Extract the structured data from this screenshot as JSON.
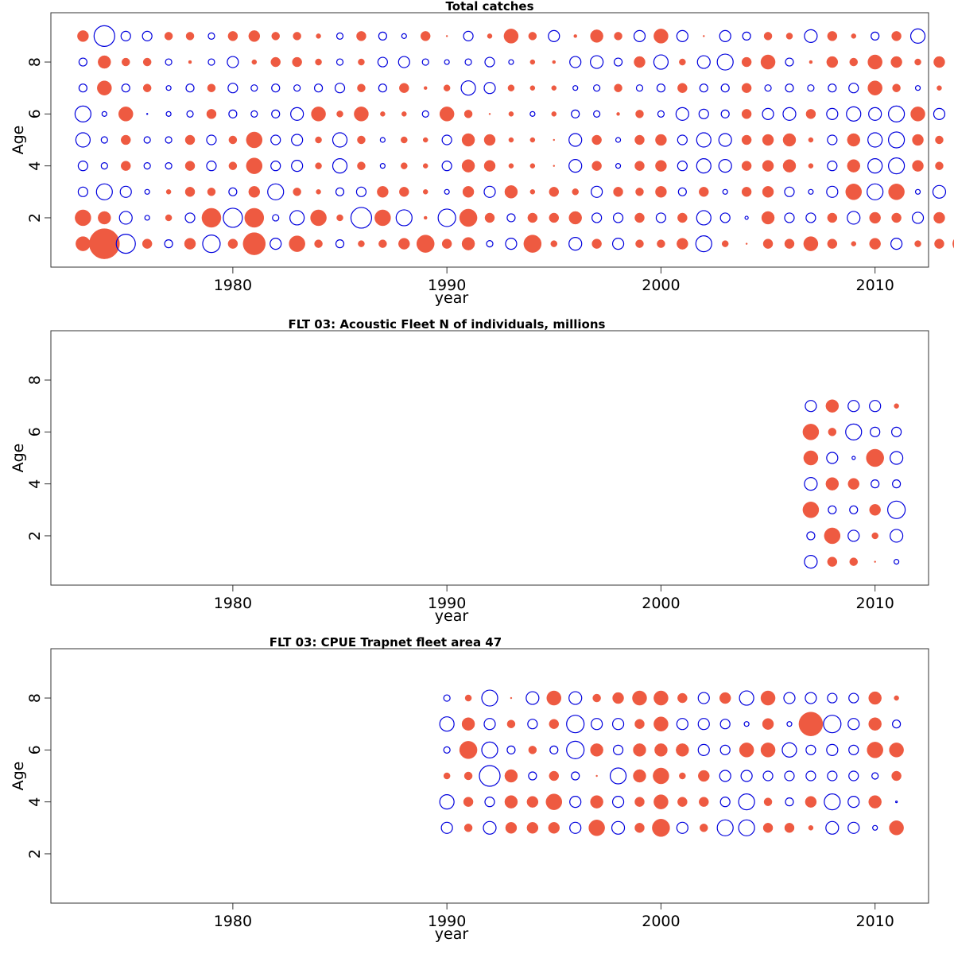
{
  "colors": {
    "positive": "#EE5A41",
    "negative": "#0000DD"
  },
  "chart_data": [
    {
      "type": "scatter",
      "title": "Total catches",
      "xlabel": "year",
      "ylabel": "Age",
      "xlim": [
        1971.5,
        2012.5
      ],
      "ylim": [
        0.1,
        9.9
      ],
      "xticks": [
        1980,
        1990,
        2000,
        2010
      ],
      "yticks": [
        2,
        4,
        6,
        8
      ],
      "x_start": 1973,
      "ages": [
        1,
        2,
        3,
        4,
        5,
        6,
        7,
        8,
        9
      ],
      "rows": [
        [
          9,
          19,
          -12,
          6,
          -5,
          7,
          -11,
          6,
          14,
          -7,
          10,
          5,
          -5,
          4,
          5,
          7,
          11,
          6,
          8,
          -4,
          -7,
          11,
          4,
          -8,
          6,
          -7,
          5,
          5,
          7,
          -10,
          4,
          1,
          6,
          6,
          9,
          6,
          3,
          7,
          -7,
          4,
          6,
          10,
          4
        ],
        [
          10,
          8,
          -8,
          -3,
          4,
          -6,
          12,
          -12,
          12,
          -4,
          -9,
          10,
          4,
          -13,
          10,
          -10,
          2,
          -11,
          11,
          6,
          -5,
          6,
          6,
          8,
          -6,
          -6,
          6,
          -6,
          6,
          -9,
          -6,
          -2,
          8,
          -6,
          -6,
          6,
          -8,
          7,
          6,
          -7,
          7,
          -6,
          8
        ],
        [
          -6,
          -10,
          -7,
          -3,
          3,
          6,
          5,
          -5,
          7,
          -10,
          5,
          3,
          -5,
          -6,
          7,
          6,
          3,
          -3,
          7,
          -7,
          8,
          3,
          6,
          4,
          -7,
          6,
          5,
          7,
          -5,
          6,
          -3,
          6,
          7,
          -6,
          -3,
          -7,
          10,
          -10,
          10,
          -3,
          -8,
          6
        ],
        [
          -6,
          -4,
          6,
          -4,
          -4,
          6,
          -6,
          5,
          10,
          -6,
          -7,
          4,
          -9,
          5,
          -3,
          4,
          3,
          -6,
          8,
          7,
          3,
          3,
          1,
          -8,
          6,
          -3,
          6,
          7,
          -6,
          -9,
          -8,
          6,
          7,
          8,
          3,
          -6,
          8,
          -9,
          -10,
          7,
          5
        ],
        [
          -9,
          -4,
          6,
          -4,
          -4,
          6,
          -6,
          5,
          10,
          -6,
          -7,
          4,
          -9,
          5,
          -3,
          4,
          3,
          -6,
          8,
          7,
          3,
          3,
          1,
          -8,
          6,
          -3,
          6,
          7,
          -6,
          -9,
          -8,
          6,
          7,
          8,
          3,
          -6,
          8,
          -9,
          -10,
          7,
          5
        ],
        [
          -10,
          -3,
          9,
          0,
          -3,
          -4,
          6,
          -5,
          -4,
          -5,
          -8,
          9,
          4,
          9,
          3,
          3,
          -4,
          9,
          5,
          1,
          3,
          -3,
          3,
          -5,
          -4,
          2,
          5,
          -4,
          -8,
          -6,
          -5,
          6,
          -7,
          -8,
          6,
          -7,
          -9,
          -8,
          -10,
          9,
          -7,
          4
        ],
        [
          -5,
          9,
          -5,
          5,
          -3,
          -5,
          5,
          -6,
          -4,
          -5,
          -4,
          -5,
          -6,
          5,
          -5,
          6,
          2,
          4,
          -9,
          -7,
          4,
          3,
          3,
          -3,
          -4,
          5,
          -4,
          -5,
          6,
          -5,
          -5,
          6,
          -4,
          -5,
          -4,
          -5,
          -6,
          9,
          5,
          -3,
          3
        ],
        [
          -5,
          8,
          5,
          5,
          -4,
          2,
          -4,
          -7,
          3,
          6,
          6,
          4,
          -4,
          4,
          -6,
          -7,
          -4,
          -3,
          -4,
          -6,
          -3,
          3,
          2,
          -7,
          -8,
          -5,
          7,
          -9,
          4,
          -8,
          -10,
          6,
          9,
          -5,
          2,
          7,
          5,
          9,
          7,
          4,
          7,
          -4
        ],
        [
          7,
          -13,
          -6,
          -6,
          5,
          5,
          -4,
          6,
          7,
          5,
          5,
          3,
          -4,
          6,
          -5,
          -3,
          6,
          1,
          -6,
          3,
          9,
          5,
          -7,
          2,
          8,
          5,
          -7,
          9,
          -7,
          1,
          -7,
          -5,
          5,
          4,
          -8,
          6,
          3,
          -5,
          6,
          -9
        ]
      ]
    },
    {
      "type": "scatter",
      "title": "FLT 03: Acoustic Fleet  N of individuals, millions",
      "xlabel": "year",
      "ylabel": "Age",
      "xlim": [
        1971.5,
        2012.5
      ],
      "ylim": [
        0.1,
        9.9
      ],
      "xticks": [
        1980,
        1990,
        2000,
        2010
      ],
      "yticks": [
        2,
        4,
        6,
        8
      ],
      "x_start": 2007,
      "ages": [
        1,
        2,
        3,
        4,
        5,
        6,
        7
      ],
      "rows": [
        [
          -8,
          6,
          5,
          1,
          -3
        ],
        [
          -5,
          10,
          -7,
          4,
          -8
        ],
        [
          10,
          -5,
          -5,
          7,
          -11
        ],
        [
          -8,
          8,
          7,
          -5,
          -5
        ],
        [
          9,
          -7,
          -2,
          11,
          -8
        ],
        [
          10,
          5,
          -10,
          -6,
          -6
        ],
        [
          -7,
          8,
          -7,
          -7,
          3
        ]
      ]
    },
    {
      "type": "scatter",
      "title": "FLT 03: CPUE Trapnet fleet area 47",
      "xlabel": "year",
      "ylabel": "Age",
      "xlim": [
        1971.5,
        2012.5
      ],
      "ylim": [
        0.1,
        9.9
      ],
      "xticks": [
        1980,
        1990,
        2000,
        2010
      ],
      "yticks": [
        2,
        4,
        6,
        8
      ],
      "x_start": 1990,
      "ages": [
        3,
        4,
        5,
        6,
        7,
        8
      ],
      "rows": [
        [
          -7,
          5,
          -8,
          7,
          7,
          7,
          -7,
          10,
          -8,
          6,
          11,
          -7,
          5,
          -10,
          -10,
          6,
          6,
          3,
          -8,
          -7,
          -3,
          9
        ],
        [
          -9,
          6,
          -6,
          8,
          7,
          10,
          -7,
          8,
          -7,
          6,
          9,
          6,
          6,
          -6,
          -10,
          5,
          -5,
          7,
          -10,
          -7,
          8,
          -1
        ],
        [
          4,
          5,
          -13,
          8,
          -5,
          6,
          -5,
          1,
          -10,
          8,
          10,
          4,
          7,
          -7,
          -7,
          -6,
          -6,
          -6,
          -6,
          -6,
          -4,
          6
        ],
        [
          -4,
          11,
          -10,
          -5,
          5,
          -5,
          -11,
          8,
          -6,
          8,
          8,
          8,
          -7,
          -6,
          9,
          9,
          -9,
          -6,
          -7,
          -6,
          10,
          9
        ],
        [
          -9,
          8,
          -7,
          5,
          -6,
          6,
          -11,
          -7,
          -7,
          6,
          9,
          -7,
          -7,
          -6,
          -3,
          7,
          -3,
          15,
          -11,
          -7,
          8,
          -5
        ],
        [
          -4,
          4,
          -10,
          1,
          -8,
          9,
          -8,
          5,
          7,
          9,
          9,
          6,
          -7,
          7,
          -9,
          9,
          -7,
          -7,
          -6,
          -6,
          8,
          3
        ]
      ]
    }
  ]
}
